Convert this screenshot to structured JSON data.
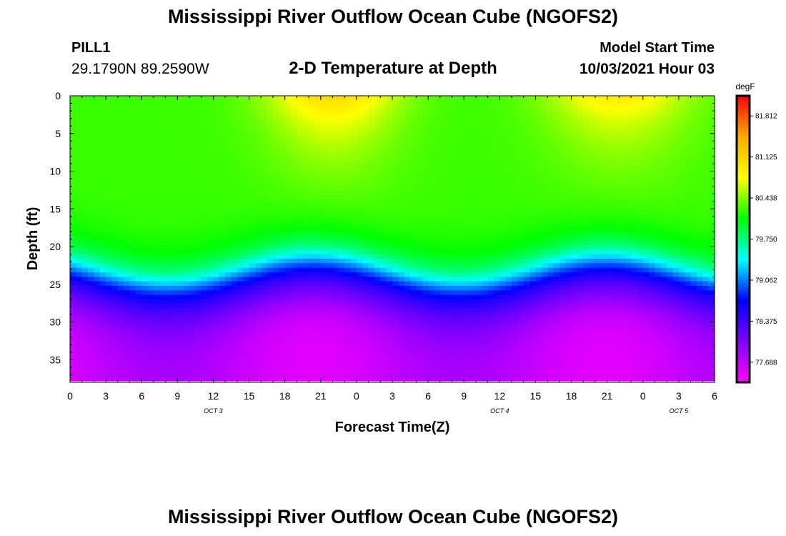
{
  "header": {
    "title": "Mississippi River Outflow Ocean Cube (NGOFS2)",
    "station": "PILL1",
    "coords": "29.1790N  89.2590W",
    "plot_title": "2-D Temperature at Depth",
    "model_start_label": "Model Start Time",
    "model_start_value": "10/03/2021 Hour 03"
  },
  "footer": {
    "title": "Mississippi River Outflow Ocean Cube (NGOFS2)"
  },
  "chart_data": {
    "type": "heatmap",
    "xlabel": "Forecast Time(Z)",
    "ylabel": "Depth (ft)",
    "x_tick_labels": [
      "0",
      "3",
      "6",
      "9",
      "12",
      "15",
      "18",
      "21",
      "0",
      "3",
      "6",
      "9",
      "12",
      "15",
      "18",
      "21",
      "0",
      "3",
      "6"
    ],
    "x_range_hours": [
      0,
      54
    ],
    "y_range": [
      0,
      38
    ],
    "y_inverted": true,
    "y_ticks": [
      0,
      5,
      10,
      15,
      20,
      25,
      30,
      35
    ],
    "date_labels": [
      {
        "label": "OCT 3",
        "hour": 12
      },
      {
        "label": "OCT 4",
        "hour": 36
      },
      {
        "label": "OCT 5",
        "hour": 51
      }
    ],
    "colorbar": {
      "units": "degF",
      "min": 77.35,
      "max": 82.15,
      "tick_labels": [
        "81.812",
        "81.125",
        "80.438",
        "79.750",
        "79.062",
        "78.375",
        "77.688"
      ],
      "colors": [
        "#ff00ff",
        "#8000ff",
        "#0000ff",
        "#00ffff",
        "#00ff00",
        "#ffff00",
        "#ffaa00",
        "#ff0000"
      ]
    },
    "grid": false
  }
}
